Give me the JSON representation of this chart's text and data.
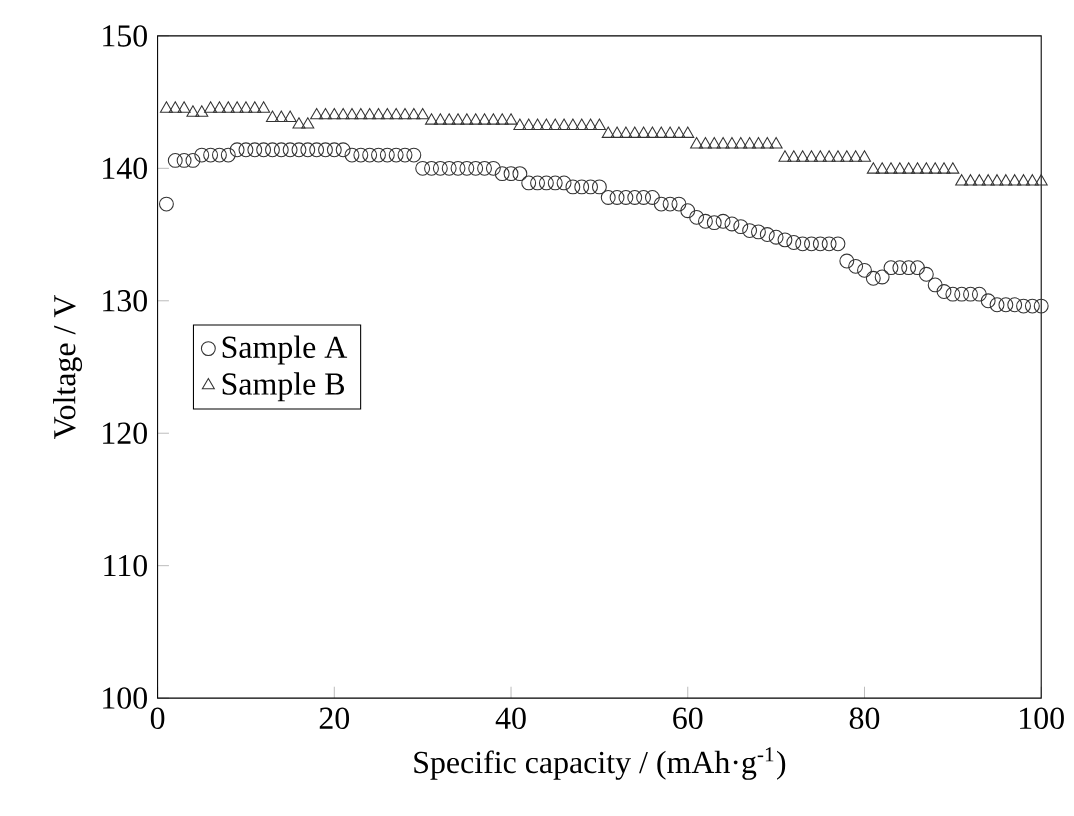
{
  "chart_data": {
    "type": "scatter",
    "xlabel": "Specific capacity / (mAh·g$^{-1}$)",
    "ylabel": "Voltage / V",
    "x": [
      1,
      2,
      3,
      4,
      5,
      6,
      7,
      8,
      9,
      10,
      11,
      12,
      13,
      14,
      15,
      16,
      17,
      18,
      19,
      20,
      21,
      22,
      23,
      24,
      25,
      26,
      27,
      28,
      29,
      30,
      31,
      32,
      33,
      34,
      35,
      36,
      37,
      38,
      39,
      40,
      41,
      42,
      43,
      44,
      45,
      46,
      47,
      48,
      49,
      50,
      51,
      52,
      53,
      54,
      55,
      56,
      57,
      58,
      59,
      60,
      61,
      62,
      63,
      64,
      65,
      66,
      67,
      68,
      69,
      70,
      71,
      72,
      73,
      74,
      75,
      76,
      77,
      78,
      79,
      80,
      81,
      82,
      83,
      84,
      85,
      86,
      87,
      88,
      89,
      90,
      91,
      92,
      93,
      94,
      95,
      96,
      97,
      98,
      99,
      100
    ],
    "series": [
      {
        "name": "Sample A",
        "color": "#333333",
        "marker": "circle",
        "values": [
          137.3,
          140.6,
          140.6,
          140.6,
          141.0,
          141.0,
          141.0,
          141.0,
          141.4,
          141.4,
          141.4,
          141.4,
          141.4,
          141.4,
          141.4,
          141.4,
          141.4,
          141.4,
          141.4,
          141.4,
          141.4,
          141.0,
          141.0,
          141.0,
          141.0,
          141.0,
          141.0,
          141.0,
          141.0,
          140.0,
          140.0,
          140.0,
          140.0,
          140.0,
          140.0,
          140.0,
          140.0,
          140.0,
          139.6,
          139.6,
          139.6,
          138.9,
          138.9,
          138.9,
          138.9,
          138.9,
          138.6,
          138.6,
          138.6,
          138.6,
          137.8,
          137.8,
          137.8,
          137.8,
          137.8,
          137.8,
          137.3,
          137.3,
          137.3,
          136.8,
          136.3,
          136.0,
          135.9,
          136.0,
          135.8,
          135.6,
          135.3,
          135.2,
          135.0,
          134.8,
          134.6,
          134.4,
          134.3,
          134.3,
          134.3,
          134.3,
          134.3,
          133.0,
          132.6,
          132.3,
          131.7,
          131.8,
          132.5,
          132.5,
          132.5,
          132.5,
          132.0,
          131.2,
          130.7,
          130.5,
          130.5,
          130.5,
          130.5,
          130.0,
          129.7,
          129.7,
          129.7,
          129.6,
          129.6,
          129.6
        ]
      },
      {
        "name": "Sample B",
        "color": "#333333",
        "marker": "triangle",
        "values": [
          144.5,
          144.5,
          144.5,
          144.2,
          144.2,
          144.5,
          144.5,
          144.5,
          144.5,
          144.5,
          144.5,
          144.5,
          143.8,
          143.8,
          143.8,
          143.3,
          143.3,
          144.0,
          144.0,
          144.0,
          144.0,
          144.0,
          144.0,
          144.0,
          144.0,
          144.0,
          144.0,
          144.0,
          144.0,
          144.0,
          143.6,
          143.6,
          143.6,
          143.6,
          143.6,
          143.6,
          143.6,
          143.6,
          143.6,
          143.6,
          143.2,
          143.2,
          143.2,
          143.2,
          143.2,
          143.2,
          143.2,
          143.2,
          143.2,
          143.2,
          142.6,
          142.6,
          142.6,
          142.6,
          142.6,
          142.6,
          142.6,
          142.6,
          142.6,
          142.6,
          141.8,
          141.8,
          141.8,
          141.8,
          141.8,
          141.8,
          141.8,
          141.8,
          141.8,
          141.8,
          140.8,
          140.8,
          140.8,
          140.8,
          140.8,
          140.8,
          140.8,
          140.8,
          140.8,
          140.8,
          139.9,
          139.9,
          139.9,
          139.9,
          139.9,
          139.9,
          139.9,
          139.9,
          139.9,
          139.9,
          139.0,
          139.0,
          139.0,
          139.0,
          139.0,
          139.0,
          139.0,
          139.0,
          139.0,
          139.0
        ]
      }
    ],
    "xlim": [
      0,
      100
    ],
    "xticks": [
      0,
      20,
      40,
      60,
      80,
      100
    ],
    "ylim": [
      100,
      150
    ],
    "yticks": [
      100,
      110,
      120,
      130,
      140,
      150
    ],
    "legend": "left",
    "grid": false
  }
}
